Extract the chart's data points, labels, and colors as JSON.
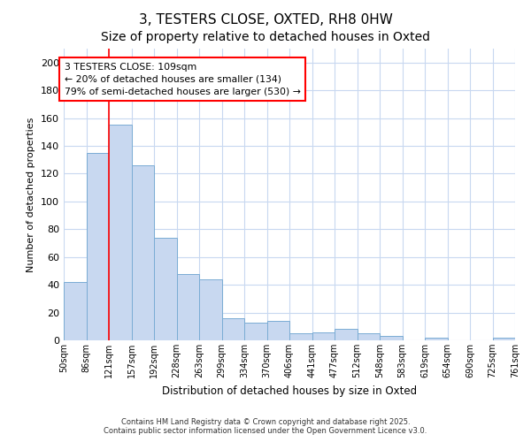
{
  "title1": "3, TESTERS CLOSE, OXTED, RH8 0HW",
  "title2": "Size of property relative to detached houses in Oxted",
  "xlabel": "Distribution of detached houses by size in Oxted",
  "ylabel": "Number of detached properties",
  "bar_color": "#c8d8f0",
  "bar_edge_color": "#7aacd4",
  "categories": [
    "50sqm",
    "86sqm",
    "121sqm",
    "157sqm",
    "192sqm",
    "228sqm",
    "263sqm",
    "299sqm",
    "334sqm",
    "370sqm",
    "406sqm",
    "441sqm",
    "477sqm",
    "512sqm",
    "548sqm",
    "583sqm",
    "619sqm",
    "654sqm",
    "690sqm",
    "725sqm",
    "761sqm"
  ],
  "values": [
    42,
    135,
    155,
    126,
    74,
    48,
    44,
    16,
    13,
    14,
    5,
    6,
    8,
    5,
    3,
    0,
    2,
    0,
    0,
    2
  ],
  "ylim": [
    0,
    210
  ],
  "yticks": [
    0,
    20,
    40,
    60,
    80,
    100,
    120,
    140,
    160,
    180,
    200
  ],
  "red_line_x": 2,
  "annotation_line1": "3 TESTERS CLOSE: 109sqm",
  "annotation_line2": "← 20% of detached houses are smaller (134)",
  "annotation_line3": "79% of semi-detached houses are larger (530) →",
  "background_color": "#ffffff",
  "grid_color": "#c8d8f0",
  "footer_line1": "Contains HM Land Registry data © Crown copyright and database right 2025.",
  "footer_line2": "Contains public sector information licensed under the Open Government Licence v3.0.",
  "title1_fontsize": 11,
  "title2_fontsize": 10
}
